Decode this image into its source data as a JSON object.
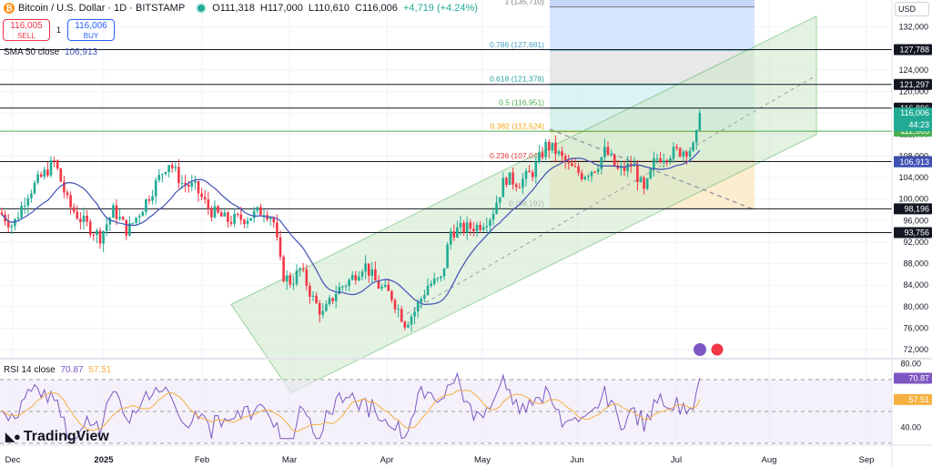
{
  "header": {
    "symbol": "Bitcoin / U.S. Dollar · 1D · BITSTAMP",
    "open": "O111,318",
    "high": "H117,000",
    "low": "L110,610",
    "close": "C116,006",
    "change": "+4,719 (+4.24%)"
  },
  "trade": {
    "sell_price": "116,005",
    "sell_label": "SELL",
    "spread": "1",
    "buy_price": "116,006",
    "buy_label": "BUY"
  },
  "indicators": {
    "sma_label": "SMA 50 close",
    "sma_value": "106,913",
    "rsi_label": "RSI 14 close",
    "rsi_value": "70.87",
    "rsi_ma": "57.51"
  },
  "currency": "USD",
  "logo_text": "TradingView",
  "colors": {
    "up": "#22ab94",
    "down": "#f23645",
    "sma": "#3f51b5",
    "rsi": "#7e57c2",
    "rsi_ma": "#f5b041"
  },
  "chart_data": {
    "type": "candlestick",
    "x_ticks": [
      "Dec",
      "2025",
      "Feb",
      "Mar",
      "Apr",
      "May",
      "Jun",
      "Jul",
      "Aug",
      "Sep"
    ],
    "y_ticks": [
      132000,
      128000,
      124000,
      120000,
      116000,
      112000,
      108000,
      104000,
      100000,
      96000,
      92000,
      88000,
      84000,
      80000,
      76000,
      72000
    ],
    "y_tick_labels": [
      "132,000",
      "128,000",
      "124,000",
      "120,000",
      "116,000",
      "112,000",
      "108,000",
      "104,000",
      "100,000",
      "96,000",
      "92,000",
      "88,000",
      "84,000",
      "80,000",
      "76,000",
      "72,000"
    ],
    "ylim": [
      70500,
      137000
    ],
    "horizontal_levels": [
      {
        "value": 127788,
        "label": "127,788"
      },
      {
        "value": 121297,
        "label": "121,297"
      },
      {
        "value": 116896,
        "label": "116,896"
      },
      {
        "value": 112605,
        "label": "112,605",
        "color": "#4caf50"
      },
      {
        "value": 106956,
        "label": "106,956"
      },
      {
        "value": 98196,
        "label": "98,196"
      },
      {
        "value": 93756,
        "label": "93,756"
      }
    ],
    "price_badges": [
      {
        "label": "116,006",
        "sub": "44:23",
        "value": 116006,
        "color": "#22ab94"
      },
      {
        "label": "106,913",
        "value": 106913,
        "color": "#3f51b5"
      }
    ],
    "fibonacci": [
      {
        "label": "1 (135,710)",
        "value": 135710
      },
      {
        "label": "0.786 (127,681)",
        "value": 127681
      },
      {
        "label": "0.618 (121,378)",
        "value": 121378
      },
      {
        "label": "0.5 (116,951)",
        "value": 116951
      },
      {
        "label": "0.382 (112,524)",
        "value": 112524
      },
      {
        "label": "0.236 (107,046)",
        "value": 107046
      },
      {
        "label": "0 (98,192)",
        "value": 98192
      }
    ],
    "rsi": {
      "y_ticks": [
        80,
        40
      ],
      "ylim": [
        30,
        82
      ],
      "level_lines": [
        70,
        50,
        30
      ],
      "value": 70.87,
      "ma": 57.51
    }
  }
}
